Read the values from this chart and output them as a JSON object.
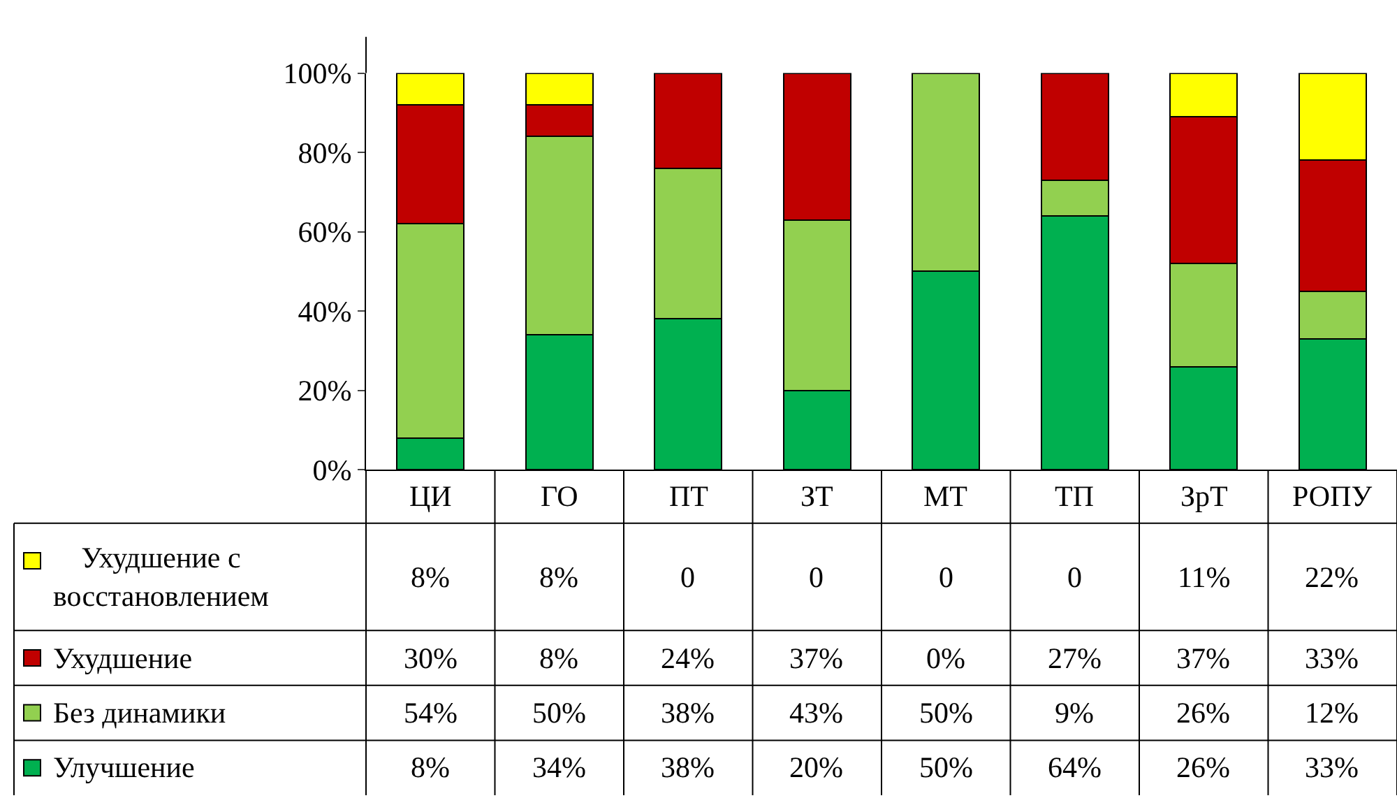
{
  "chart_data": {
    "type": "bar",
    "stacked": true,
    "categories": [
      "ЦИ",
      "ГО",
      "ПТ",
      "ЗТ",
      "МТ",
      "ТП",
      "ЗрТ",
      "РОПУ"
    ],
    "series": [
      {
        "name": "Улучшение",
        "color": "#00b050",
        "values": [
          8,
          34,
          38,
          20,
          50,
          64,
          26,
          33
        ],
        "value_labels": [
          "8%",
          "34%",
          "38%",
          "20%",
          "50%",
          "64%",
          "26%",
          "33%"
        ]
      },
      {
        "name": "Без динамики",
        "color": "#92d050",
        "values": [
          54,
          50,
          38,
          43,
          50,
          9,
          26,
          12
        ],
        "value_labels": [
          "54%",
          "50%",
          "38%",
          "43%",
          "50%",
          "9%",
          "26%",
          "12%"
        ]
      },
      {
        "name": "Ухудшение",
        "color": "#c00000",
        "values": [
          30,
          8,
          24,
          37,
          0,
          27,
          37,
          33
        ],
        "value_labels": [
          "30%",
          "8%",
          "24%",
          "37%",
          "0%",
          "27%",
          "37%",
          "33%"
        ]
      },
      {
        "name": "Ухудшение с восстановлением",
        "color": "#ffff00",
        "values": [
          8,
          8,
          0,
          0,
          0,
          0,
          11,
          22
        ],
        "value_labels": [
          "8%",
          "8%",
          "0",
          "0",
          "0",
          "0",
          "11%",
          "22%"
        ]
      }
    ],
    "ylim": [
      0,
      100
    ],
    "yticks": [
      {
        "value": 0,
        "label": "0%"
      },
      {
        "value": 20,
        "label": "20%"
      },
      {
        "value": 40,
        "label": "40%"
      },
      {
        "value": 60,
        "label": "60%"
      },
      {
        "value": 80,
        "label": "80%"
      },
      {
        "value": 100,
        "label": "100%"
      }
    ],
    "grid": false,
    "legend": "bottom left"
  }
}
